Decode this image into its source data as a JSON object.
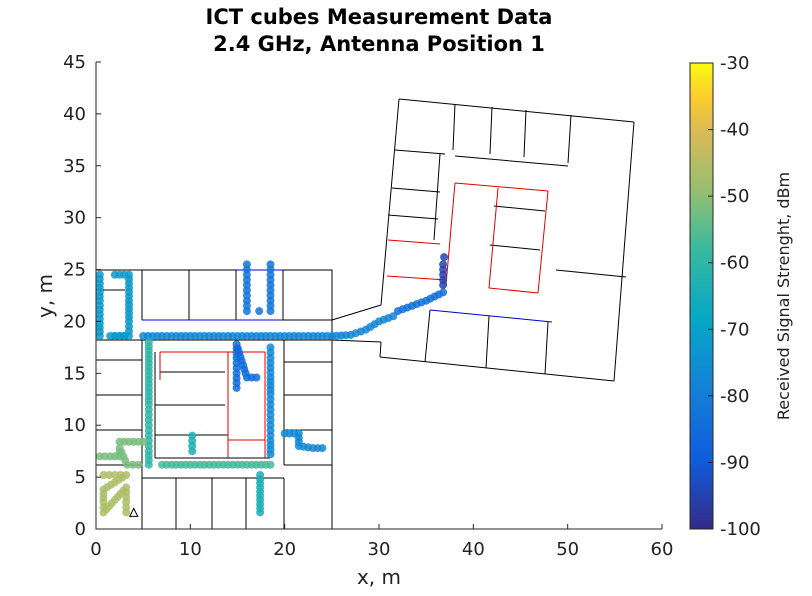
{
  "chart_data": {
    "type": "scatter",
    "title": "ICT cubes Measurement Data",
    "subtitle": "2.4 GHz, Antenna Position 1",
    "xlabel": "x, m",
    "ylabel": "y, m",
    "xlim": [
      0,
      60
    ],
    "ylim": [
      0,
      45
    ],
    "xticks": [
      "0",
      "10",
      "20",
      "30",
      "40",
      "50",
      "60"
    ],
    "yticks": [
      "0",
      "5",
      "10",
      "15",
      "20",
      "25",
      "30",
      "35",
      "40",
      "45"
    ],
    "grid": false,
    "colorbar": {
      "label": "Received Signal Strenght, dBm",
      "range": [
        -100,
        -30
      ],
      "ticks": [
        "-30",
        "-40",
        "-50",
        "-60",
        "-70",
        "-80",
        "-90",
        "-100"
      ]
    },
    "marker": {
      "type": "triangle",
      "x": 4,
      "y": 1.6
    },
    "series": [
      {
        "points": [
          [
            0.4,
            24.5
          ],
          [
            0.4,
            22
          ],
          [
            0.4,
            19.8
          ],
          [
            0.4,
            18.6
          ],
          [
            2,
            24.5
          ],
          [
            3.5,
            24.5
          ],
          [
            3.5,
            22
          ],
          [
            3.5,
            20
          ],
          [
            3.5,
            18.6
          ],
          [
            1.5,
            18.6
          ],
          [
            3,
            18.6
          ]
        ],
        "rssi": -72
      },
      {
        "points": [
          [
            5,
            18.6
          ],
          [
            7,
            18.6
          ],
          [
            9,
            18.6
          ],
          [
            11,
            18.6
          ],
          [
            13,
            18.6
          ],
          [
            15,
            18.6
          ],
          [
            17,
            18.6
          ],
          [
            19,
            18.6
          ],
          [
            21,
            18.6
          ],
          [
            23,
            18.6
          ],
          [
            25,
            18.6
          ],
          [
            27,
            18.7
          ],
          [
            28.6,
            19.2
          ],
          [
            30,
            20
          ],
          [
            31.5,
            20.5
          ]
        ],
        "rssi": -78
      },
      {
        "points": [
          [
            32,
            21
          ],
          [
            33.5,
            21.5
          ],
          [
            35,
            22
          ],
          [
            36.8,
            22.8
          ]
        ],
        "rssi": -84
      },
      {
        "points": [
          [
            36.8,
            23.5
          ],
          [
            36.8,
            24.5
          ],
          [
            36.8,
            25.5
          ],
          [
            36.9,
            26.2
          ]
        ],
        "rssi": -95
      },
      {
        "points": [
          [
            16,
            21
          ],
          [
            16,
            22.5
          ],
          [
            16,
            24
          ],
          [
            16,
            25.5
          ],
          [
            18.5,
            21
          ],
          [
            18.5,
            22.5
          ],
          [
            18.5,
            24
          ],
          [
            18.5,
            25.5
          ],
          [
            17.3,
            21
          ]
        ],
        "rssi": -82
      },
      {
        "points": [
          [
            5.6,
            18
          ],
          [
            5.6,
            16
          ],
          [
            5.6,
            14
          ],
          [
            5.6,
            12
          ],
          [
            5.6,
            10.5
          ],
          [
            5.6,
            9
          ],
          [
            5.6,
            7.5
          ],
          [
            5.6,
            6.2
          ]
        ],
        "rssi": -60
      },
      {
        "points": [
          [
            2.5,
            8.4
          ],
          [
            4,
            8.4
          ],
          [
            5,
            8.4
          ],
          [
            0.4,
            7
          ],
          [
            1.5,
            7
          ],
          [
            2.5,
            7
          ],
          [
            2.5,
            7.8
          ],
          [
            3.3,
            6.2
          ],
          [
            4.5,
            6.2
          ]
        ],
        "rssi": -52
      },
      {
        "points": [
          [
            7,
            6.2
          ],
          [
            9,
            6.2
          ],
          [
            11,
            6.2
          ],
          [
            13,
            6.2
          ],
          [
            15,
            6.2
          ],
          [
            17,
            6.2
          ],
          [
            18.5,
            6.2
          ]
        ],
        "rssi": -57
      },
      {
        "points": [
          [
            10.2,
            7.5
          ],
          [
            10.2,
            8.5
          ],
          [
            10.2,
            9
          ]
        ],
        "rssi": -63
      },
      {
        "points": [
          [
            0.8,
            5.2
          ],
          [
            2,
            5.2
          ],
          [
            3.2,
            5.2
          ],
          [
            0.8,
            3.8
          ],
          [
            0.8,
            2.6
          ],
          [
            0.8,
            1.6
          ],
          [
            3.2,
            4
          ],
          [
            3.2,
            2.6
          ],
          [
            3.2,
            1.6
          ]
        ],
        "rssi": -46
      },
      {
        "points": [
          [
            17.4,
            5.2
          ],
          [
            17.4,
            4
          ],
          [
            17.4,
            2.8
          ],
          [
            17.4,
            1.6
          ]
        ],
        "rssi": -64
      },
      {
        "points": [
          [
            18.5,
            7.2
          ],
          [
            18.5,
            8.5
          ],
          [
            18.5,
            10
          ],
          [
            18.5,
            11.5
          ],
          [
            18.5,
            13
          ],
          [
            18.5,
            14.6
          ],
          [
            18.5,
            16
          ],
          [
            18.5,
            17.5
          ],
          [
            20,
            9.2
          ],
          [
            21.5,
            9.2
          ],
          [
            21.5,
            8
          ],
          [
            23,
            7.8
          ],
          [
            24,
            7.8
          ]
        ],
        "rssi": -77
      },
      {
        "points": [
          [
            14.9,
            13.6
          ],
          [
            14.9,
            15
          ],
          [
            14.9,
            16.5
          ],
          [
            14.9,
            17.8
          ],
          [
            16,
            14.6
          ],
          [
            17,
            14.6
          ]
        ],
        "rssi": -85
      }
    ]
  }
}
